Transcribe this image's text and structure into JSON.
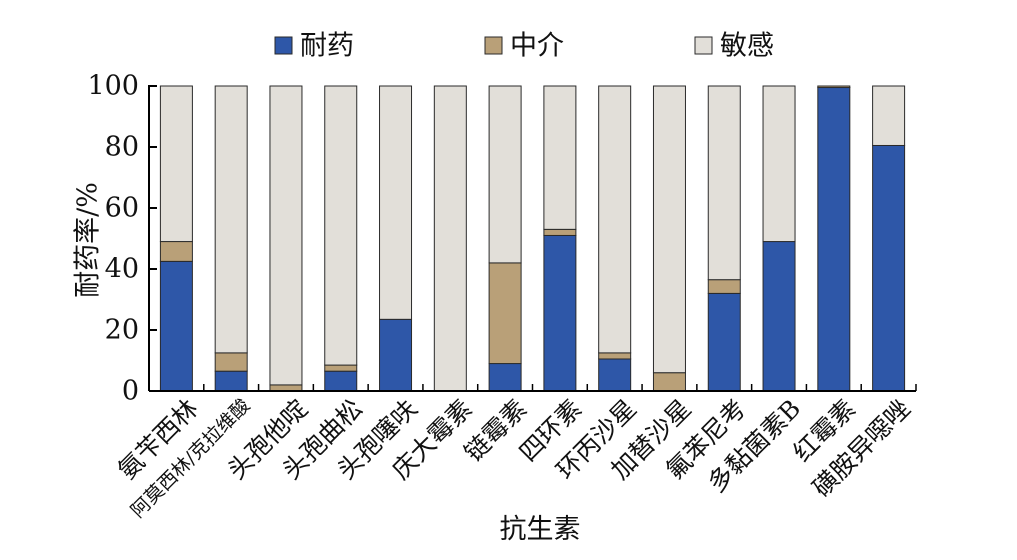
{
  "chart_data": {
    "type": "bar",
    "stacked": true,
    "xlabel": "抗生素",
    "ylabel": "耐药率/%",
    "ylim": [
      0,
      100
    ],
    "yticks": [
      0,
      20,
      40,
      60,
      80,
      100
    ],
    "grid": false,
    "legend_position": "top",
    "categories": [
      "氨苄西林",
      "阿莫西林/克拉维酸",
      "头孢他啶",
      "头孢曲松",
      "头孢噻呋",
      "庆大霉素",
      "链霉素",
      "四环素",
      "环丙沙星",
      "加替沙星",
      "氟苯尼考",
      "多黏菌素B",
      "红霉素",
      "磺胺异噁唑"
    ],
    "series": [
      {
        "name": "耐药",
        "color": "#2e57a8",
        "values": [
          42.5,
          6.5,
          0,
          6.5,
          23.5,
          0,
          9,
          51,
          10.5,
          0,
          32,
          49,
          99.5,
          80.5
        ]
      },
      {
        "name": "中介",
        "color": "#b9a078",
        "values": [
          6.5,
          6,
          2,
          2,
          0,
          0,
          33,
          2,
          2,
          6,
          4.5,
          0,
          0.5,
          0
        ]
      },
      {
        "name": "敏感",
        "color": "#e2dfd9",
        "values": [
          51,
          87.5,
          98,
          91.5,
          76.5,
          100,
          58,
          47,
          87.5,
          94,
          63.5,
          51,
          0,
          19.5
        ]
      }
    ]
  }
}
